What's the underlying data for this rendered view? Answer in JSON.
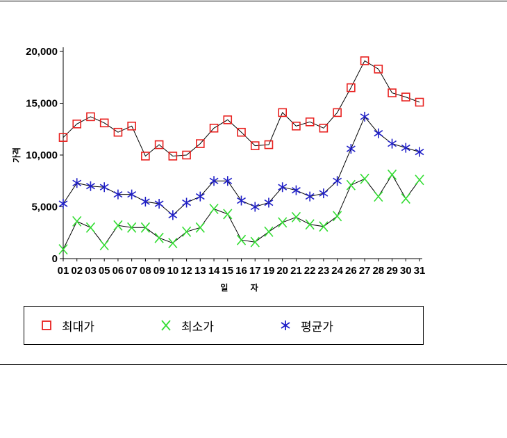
{
  "chart_data": {
    "type": "line",
    "ylabel": "가격",
    "xlabel": "일 자",
    "ylim": [
      0,
      20000
    ],
    "yticks": [
      0,
      5000,
      10000,
      15000,
      20000
    ],
    "ytick_labels": [
      "0",
      "5,000",
      "10,000",
      "15,000",
      "20,000"
    ],
    "categories": [
      "01",
      "02",
      "03",
      "05",
      "06",
      "07",
      "08",
      "09",
      "10",
      "12",
      "13",
      "14",
      "15",
      "16",
      "17",
      "19",
      "20",
      "21",
      "22",
      "23",
      "24",
      "26",
      "27",
      "28",
      "29",
      "30",
      "31"
    ],
    "series": [
      {
        "name": "최대가",
        "marker": "square",
        "color": "#e8201e",
        "values": [
          11700,
          13000,
          13700,
          13100,
          12200,
          12800,
          9900,
          11000,
          9900,
          10000,
          11100,
          12600,
          13400,
          12200,
          10900,
          11000,
          14100,
          12800,
          13200,
          12600,
          14100,
          16500,
          19100,
          18300,
          16000,
          15600,
          15100
        ]
      },
      {
        "name": "최소가",
        "marker": "x",
        "color": "#33dd33",
        "values": [
          900,
          3600,
          3000,
          1300,
          3200,
          3000,
          3000,
          2000,
          1500,
          2600,
          3000,
          4800,
          4300,
          1800,
          1600,
          2600,
          3500,
          4000,
          3300,
          3100,
          4100,
          7100,
          7700,
          6000,
          8100,
          5800,
          7600
        ]
      },
      {
        "name": "평균가",
        "marker": "asterisk",
        "color": "#2020c8",
        "values": [
          5300,
          7300,
          7000,
          6900,
          6200,
          6200,
          5500,
          5300,
          4200,
          5400,
          6000,
          7500,
          7500,
          5600,
          5000,
          5400,
          6900,
          6600,
          6000,
          6300,
          7500,
          10600,
          13700,
          12100,
          11100,
          10700,
          10300
        ]
      }
    ],
    "grid": false,
    "legend_position": "bottom"
  }
}
